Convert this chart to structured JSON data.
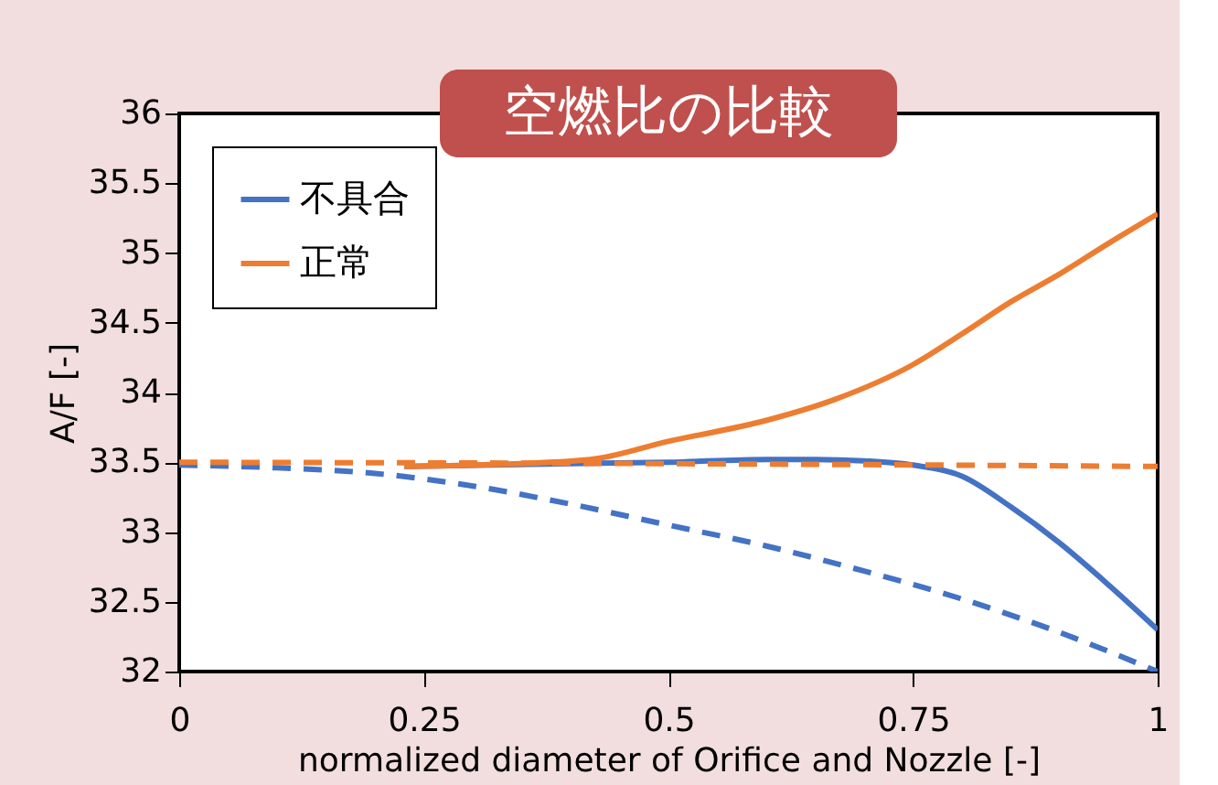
{
  "chart_data": {
    "type": "line",
    "title": "空燃比の比較",
    "xlabel": "normalized diameter of Orifice and Nozzle [-]",
    "ylabel": "A/F [-]",
    "xlim": [
      0,
      1
    ],
    "xticks": [
      0,
      0.25,
      0.5,
      0.75,
      1
    ],
    "ylim": [
      32,
      36
    ],
    "yticks": [
      32,
      32.5,
      33,
      33.5,
      34,
      34.5,
      35,
      35.5,
      36
    ],
    "grid": false,
    "legend": "top left",
    "marker": "none",
    "series": [
      {
        "name": "不具合",
        "color": "#4472c4",
        "line_style": "solid",
        "x": [
          0.23,
          0.4,
          0.5,
          0.6,
          0.65,
          0.7,
          0.75,
          0.8,
          0.85,
          0.9,
          0.95,
          1.0
        ],
        "values": [
          33.47,
          33.49,
          33.5,
          33.52,
          33.52,
          33.51,
          33.48,
          33.4,
          33.18,
          32.92,
          32.62,
          32.3
        ]
      },
      {
        "name": "正常",
        "color": "#ed7d31",
        "line_style": "solid",
        "x": [
          0.23,
          0.3,
          0.42,
          0.5,
          0.6,
          0.67,
          0.75,
          0.8,
          0.85,
          0.9,
          0.95,
          1.0
        ],
        "values": [
          33.47,
          33.48,
          33.52,
          33.65,
          33.8,
          33.95,
          34.2,
          34.42,
          34.65,
          34.85,
          35.07,
          35.28
        ]
      },
      {
        "color": "#4472c4",
        "line_style": "dashed",
        "x": [
          0,
          0.1,
          0.2,
          0.3,
          0.4,
          0.5,
          0.6,
          0.7,
          0.8,
          0.9,
          1.0
        ],
        "values": [
          33.48,
          33.46,
          33.42,
          33.33,
          33.2,
          33.05,
          32.9,
          32.72,
          32.52,
          32.28,
          32.0
        ]
      },
      {
        "color": "#ed7d31",
        "line_style": "dashed",
        "x": [
          0,
          0.5,
          1.0
        ],
        "values": [
          33.5,
          33.49,
          33.47
        ]
      }
    ]
  }
}
